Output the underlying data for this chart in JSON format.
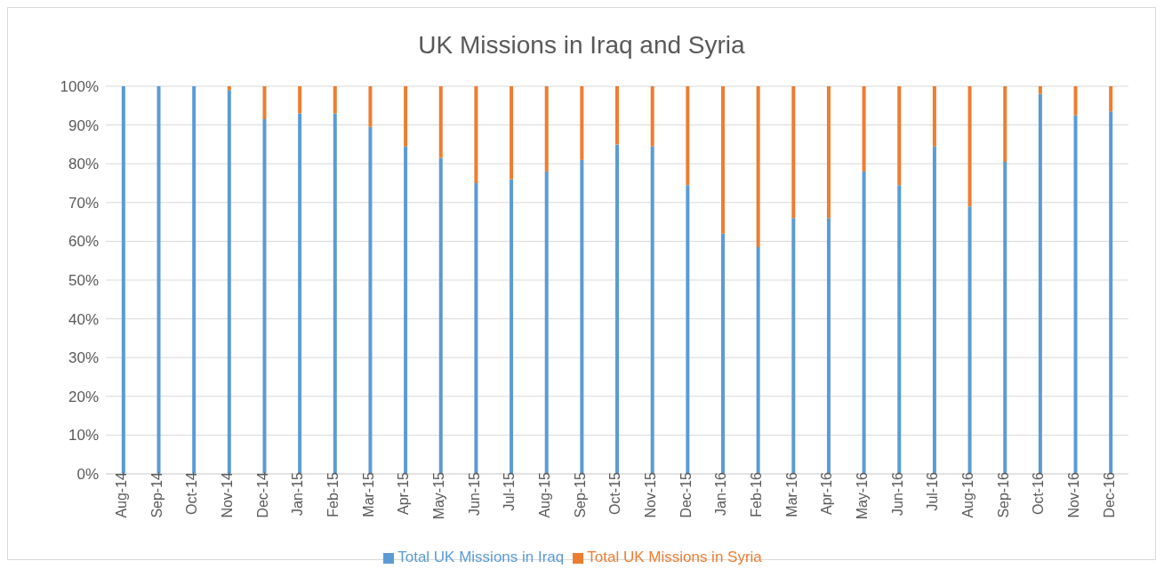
{
  "chart_data": {
    "type": "bar",
    "title": "UK Missions in Iraq and Syria",
    "stacked": true,
    "grid": "y",
    "legend": "bottom",
    "categories": [
      "Aug-14",
      "Sep-14",
      "Oct-14",
      "Nov-14",
      "Dec-14",
      "Jan-15",
      "Feb-15",
      "Mar-15",
      "Apr-15",
      "May-15",
      "Jun-15",
      "Jul-15",
      "Aug-15",
      "Sep-15",
      "Oct-15",
      "Nov-15",
      "Dec-15",
      "Jan-16",
      "Feb-16",
      "Mar-16",
      "Apr-16",
      "May-16",
      "Jun-16",
      "Jul-16",
      "Aug-16",
      "Sep-16",
      "Oct-16",
      "Nov-16",
      "Dec-16"
    ],
    "series": [
      {
        "name": "Total UK Missions in Iraq",
        "color": "#5b9bd5",
        "values": [
          100,
          100,
          100,
          99,
          91.5,
          93,
          93,
          89.5,
          84.5,
          81.5,
          75,
          76,
          78,
          81,
          85,
          84.5,
          74.5,
          62,
          58.5,
          66,
          66,
          78,
          74.5,
          84.5,
          69,
          80.5,
          98,
          92.5,
          93.5
        ]
      },
      {
        "name": "Total UK Missions in Syria",
        "color": "#ed7d31",
        "values": [
          0,
          0,
          0,
          1,
          8.5,
          7,
          7,
          10.5,
          15.5,
          18.5,
          25,
          24,
          22,
          19,
          15,
          15.5,
          25.5,
          38,
          41.5,
          34,
          34,
          22,
          25.5,
          15.5,
          31,
          19.5,
          2,
          7.5,
          6.5
        ]
      }
    ],
    "ylim": [
      0,
      100
    ],
    "yticks": [
      {
        "value": 0,
        "label": "0%"
      },
      {
        "value": 10,
        "label": "10%"
      },
      {
        "value": 20,
        "label": "20%"
      },
      {
        "value": 30,
        "label": "30%"
      },
      {
        "value": 40,
        "label": "40%"
      },
      {
        "value": 50,
        "label": "50%"
      },
      {
        "value": 60,
        "label": "60%"
      },
      {
        "value": 70,
        "label": "70%"
      },
      {
        "value": 80,
        "label": "80%"
      },
      {
        "value": 90,
        "label": "90%"
      },
      {
        "value": 100,
        "label": "100%"
      }
    ]
  }
}
